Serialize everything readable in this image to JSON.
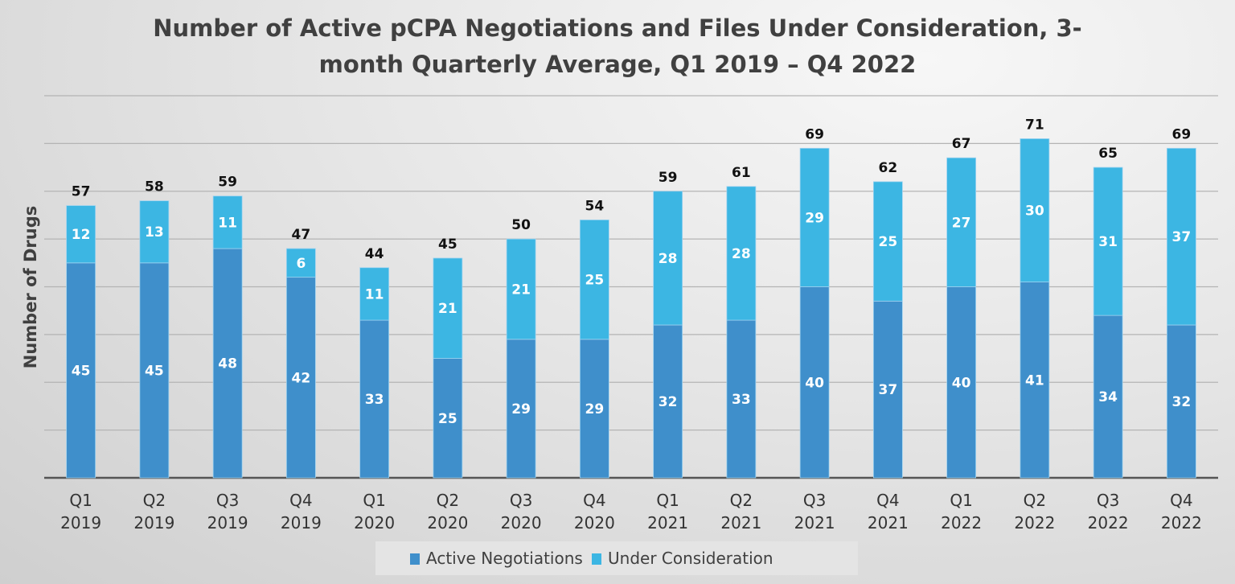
{
  "chart_data": {
    "type": "bar",
    "stacked": true,
    "title_lines": [
      "Number of Active pCPA Negotiations and Files Under Consideration, 3-",
      "month Quarterly Average, Q1 2019 – Q4 2022"
    ],
    "xlabel": "",
    "ylabel": "Number of Drugs",
    "ylim": [
      0,
      80
    ],
    "ytick_step": 10,
    "grid": true,
    "legend_position": "bottom",
    "categories": [
      [
        "Q1",
        "2019"
      ],
      [
        "Q2",
        "2019"
      ],
      [
        "Q3",
        "2019"
      ],
      [
        "Q4",
        "2019"
      ],
      [
        "Q1",
        "2020"
      ],
      [
        "Q2",
        "2020"
      ],
      [
        "Q3",
        "2020"
      ],
      [
        "Q4",
        "2020"
      ],
      [
        "Q1",
        "2021"
      ],
      [
        "Q2",
        "2021"
      ],
      [
        "Q3",
        "2021"
      ],
      [
        "Q4",
        "2021"
      ],
      [
        "Q1",
        "2022"
      ],
      [
        "Q2",
        "2022"
      ],
      [
        "Q3",
        "2022"
      ],
      [
        "Q4",
        "2022"
      ]
    ],
    "series": [
      {
        "name": "Active Negotiations",
        "color": "#3f8fcb",
        "values": [
          45,
          45,
          48,
          42,
          33,
          25,
          29,
          29,
          32,
          33,
          40,
          37,
          40,
          41,
          34,
          32
        ]
      },
      {
        "name": "Under Consideration",
        "color": "#3cb6e3",
        "values": [
          12,
          13,
          11,
          6,
          11,
          21,
          21,
          25,
          28,
          28,
          29,
          25,
          27,
          30,
          31,
          37
        ]
      }
    ],
    "totals": [
      57,
      58,
      59,
      47,
      44,
      45,
      50,
      54,
      59,
      61,
      69,
      62,
      67,
      71,
      65,
      69
    ]
  }
}
